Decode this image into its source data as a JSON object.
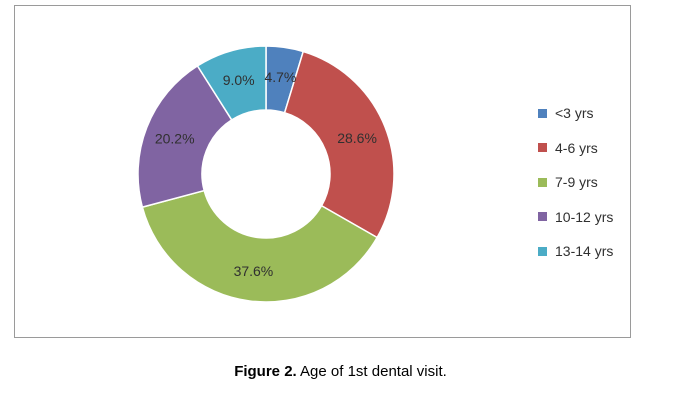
{
  "chart_data": {
    "type": "pie",
    "donut": true,
    "categories": [
      "<3 yrs",
      "4-6 yrs",
      "7-9 yrs",
      "10-12 yrs",
      "13-14 yrs"
    ],
    "values": [
      4.7,
      28.6,
      37.6,
      20.2,
      9.0
    ],
    "labels": [
      "4.7%",
      "28.6%",
      "37.6%",
      "20.2%",
      "9.0%"
    ],
    "colors": [
      "#4f81bd",
      "#c0504d",
      "#9bbb59",
      "#8064a2",
      "#4bacc6"
    ],
    "legend_position": "right"
  },
  "caption": {
    "prefix": "Figure 2.",
    "text": " Age of 1st dental visit."
  }
}
